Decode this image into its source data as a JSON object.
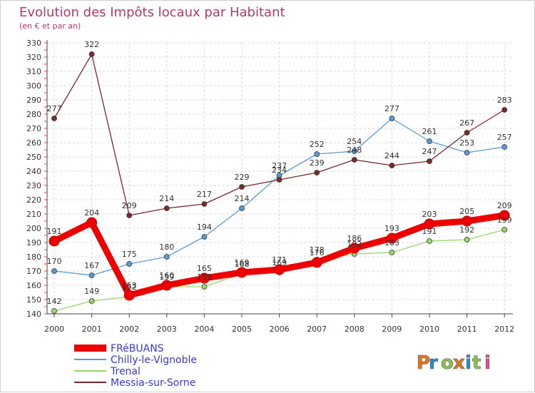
{
  "chart_data": {
    "type": "line",
    "title": "Evolution des Impôts locaux par Habitant",
    "subtitle": "(en € et par an)",
    "xlabel": "",
    "ylabel": "",
    "ylim": [
      140,
      330
    ],
    "ytick_step": 10,
    "x": [
      "2000",
      "2001",
      "2002",
      "2003",
      "2004",
      "2005",
      "2006",
      "2007",
      "2008",
      "2009",
      "2010",
      "2011",
      "2012"
    ],
    "series": [
      {
        "name": "FRéBUANS",
        "color": "#ee0000",
        "values": [
          191,
          204,
          153,
          160,
          165,
          169,
          171,
          176,
          186,
          193,
          203,
          205,
          209
        ]
      },
      {
        "name": "Chilly-le-Vignoble",
        "color": "#5b9bd5",
        "values": [
          170,
          167,
          175,
          180,
          194,
          214,
          237,
          252,
          254,
          277,
          261,
          253,
          257
        ]
      },
      {
        "name": "Trenal",
        "color": "#9bd66b",
        "values": [
          142,
          149,
          152,
          159,
          159,
          168,
          169,
          178,
          182,
          183,
          191,
          192,
          199
        ]
      },
      {
        "name": "Messia-sur-Sorne",
        "color": "#7a2a2a",
        "values": [
          277,
          322,
          209,
          214,
          217,
          229,
          234,
          239,
          248,
          244,
          247,
          267,
          283
        ]
      }
    ],
    "brand": "Proxiti",
    "brand_colors": [
      "#e8731c",
      "#2a8bd6",
      "#8bc34a",
      "#e8731c",
      "#2a8bd6",
      "#8bc34a",
      "#e84a8a"
    ]
  }
}
